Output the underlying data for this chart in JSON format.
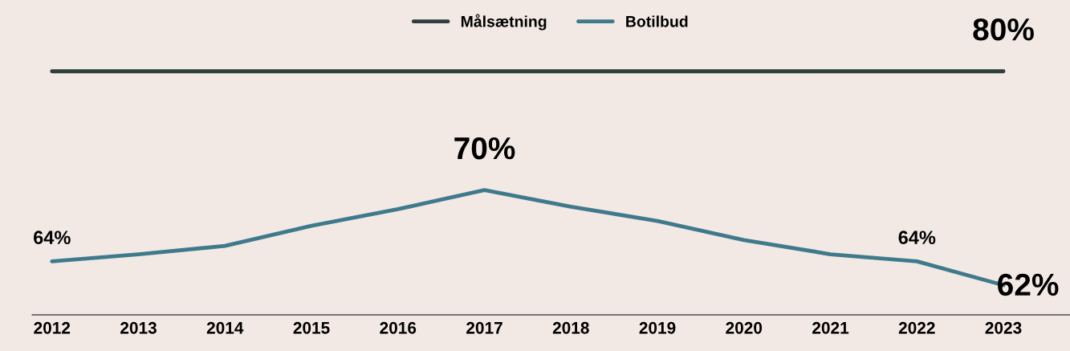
{
  "chart_data": {
    "type": "line",
    "categories": [
      "2012",
      "2013",
      "2014",
      "2015",
      "2016",
      "2017",
      "2018",
      "2019",
      "2020",
      "2021",
      "2022",
      "2023"
    ],
    "series": [
      {
        "name": "Målsætning",
        "color": "#2e3f3d",
        "values": [
          80,
          80,
          80,
          80,
          80,
          80,
          80,
          80,
          80,
          80,
          80,
          80
        ],
        "value_labels": [
          null,
          null,
          null,
          null,
          null,
          null,
          null,
          null,
          null,
          null,
          null,
          "80%"
        ]
      },
      {
        "name": "Botilbud",
        "color": "#3f7a8c",
        "values": [
          64,
          64.6,
          65.3,
          67.0,
          68.4,
          70,
          68.6,
          67.4,
          65.8,
          64.6,
          64,
          62
        ],
        "value_labels": [
          "64%",
          null,
          null,
          null,
          null,
          "70%",
          null,
          null,
          null,
          null,
          "64%",
          "62%"
        ]
      }
    ],
    "ylim": [
      59.5,
      86
    ],
    "legend": "top",
    "grid": false,
    "marker": "none",
    "line_style": "solid"
  }
}
